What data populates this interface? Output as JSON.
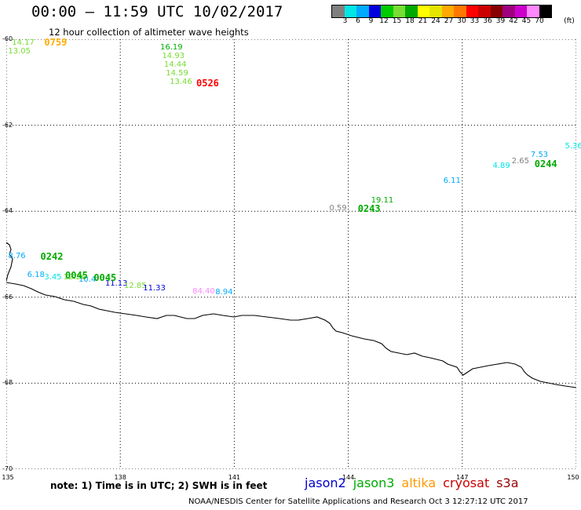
{
  "header": {
    "title": "00:00 – 11:59 UTC 10/02/2017",
    "subtitle": "12 hour collection of altimeter wave heights"
  },
  "colorbar": {
    "colors": [
      "#7f7f7f",
      "#00e5e5",
      "#00aaff",
      "#0000dd",
      "#00cc00",
      "#77dd33",
      "#00aa00",
      "#ffff00",
      "#e5e500",
      "#ffaa00",
      "#ff7700",
      "#ff0000",
      "#cc0000",
      "#880000",
      "#a00080",
      "#cc00cc",
      "#ff88ff",
      "#000000"
    ],
    "labels": [
      "3",
      "6",
      "9",
      "12",
      "15",
      "18",
      "21",
      "24",
      "27",
      "30",
      "33",
      "36",
      "39",
      "42",
      "45",
      "70"
    ],
    "unit": "(ft)"
  },
  "axes": {
    "lat_ticks": [
      "-60",
      "-62",
      "-64",
      "-66",
      "-68",
      "-70"
    ],
    "lon_ticks": [
      "135",
      "138",
      "141",
      "144",
      "147",
      "150"
    ]
  },
  "observations": [
    {
      "text": "14.17",
      "color": "#77dd33",
      "lon": 135.15,
      "lat": -60.1
    },
    {
      "text": "13.05",
      "color": "#77dd33",
      "lon": 135.05,
      "lat": -60.3
    },
    {
      "text": "16.19",
      "color": "#00aa00",
      "lon": 139.05,
      "lat": -60.2
    },
    {
      "text": "14.93",
      "color": "#77dd33",
      "lon": 139.1,
      "lat": -60.4
    },
    {
      "text": "14.44",
      "color": "#77dd33",
      "lon": 139.15,
      "lat": -60.6
    },
    {
      "text": "14.59",
      "color": "#77dd33",
      "lon": 139.2,
      "lat": -60.8
    },
    {
      "text": "13.46",
      "color": "#77dd33",
      "lon": 139.3,
      "lat": -61.0
    },
    {
      "text": "5.36",
      "color": "#00e5e5",
      "lon": 149.7,
      "lat": -62.5
    },
    {
      "text": "7.53",
      "color": "#00aaff",
      "lon": 148.8,
      "lat": -62.7
    },
    {
      "text": "2.65",
      "color": "#7f7f7f",
      "lon": 148.3,
      "lat": -62.85
    },
    {
      "text": "4.89",
      "color": "#00e5e5",
      "lon": 147.8,
      "lat": -62.95
    },
    {
      "text": "6.11",
      "color": "#00aaff",
      "lon": 146.5,
      "lat": -63.3
    },
    {
      "text": "19.11",
      "color": "#00aa00",
      "lon": 144.6,
      "lat": -63.75
    },
    {
      "text": "0.59",
      "color": "#7f7f7f",
      "lon": 143.5,
      "lat": -63.95
    },
    {
      "text": "8.76",
      "color": "#00aaff",
      "lon": 135.05,
      "lat": -65.05
    },
    {
      "text": "6.18",
      "color": "#00aaff",
      "lon": 135.55,
      "lat": -65.5
    },
    {
      "text": "3.45",
      "color": "#00e5e5",
      "lon": 136.0,
      "lat": -65.55
    },
    {
      "text": "12.26",
      "color": "#77dd33",
      "lon": 136.5,
      "lat": -65.55
    },
    {
      "text": "10.4",
      "color": "#00aaff",
      "lon": 136.9,
      "lat": -65.6
    },
    {
      "text": "11.13",
      "color": "#0000dd",
      "lon": 137.6,
      "lat": -65.7
    },
    {
      "text": "12.85",
      "color": "#77dd33",
      "lon": 138.1,
      "lat": -65.75
    },
    {
      "text": "11.33",
      "color": "#0000dd",
      "lon": 138.6,
      "lat": -65.8
    },
    {
      "text": "84.40",
      "color": "#ff88ff",
      "lon": 139.9,
      "lat": -65.88
    },
    {
      "text": "8.94",
      "color": "#00aaff",
      "lon": 140.5,
      "lat": -65.9
    }
  ],
  "pass_times": [
    {
      "text": "0759",
      "color": "#ffaa00",
      "lon": 136.0,
      "lat": -60.08
    },
    {
      "text": "0526",
      "color": "#ff0000",
      "lon": 140.0,
      "lat": -61.02
    },
    {
      "text": "0244",
      "color": "#00aa00",
      "lon": 148.9,
      "lat": -62.9
    },
    {
      "text": "0243",
      "color": "#00aa00",
      "lon": 144.25,
      "lat": -63.95
    },
    {
      "text": "0242",
      "color": "#00aa00",
      "lon": 135.9,
      "lat": -65.05
    },
    {
      "text": "0045",
      "color": "#00aa00",
      "lon": 136.55,
      "lat": -65.5
    },
    {
      "text": "0045",
      "color": "#00aa00",
      "lon": 137.3,
      "lat": -65.55
    }
  ],
  "footer": {
    "note": "note:  1) Time is in UTC;  2) SWH is in feet",
    "satellites": [
      {
        "name": "jason2",
        "color": "#0000cc"
      },
      {
        "name": "jason3",
        "color": "#00aa00"
      },
      {
        "name": "altika",
        "color": "#ff9900"
      },
      {
        "name": "cryosat",
        "color": "#cc0000"
      },
      {
        "name": "s3a",
        "color": "#990000"
      }
    ],
    "credit": "NOAA/NESDIS Center for Satellite Applications and Research    Oct  3 12:27:12 UTC 2017"
  }
}
